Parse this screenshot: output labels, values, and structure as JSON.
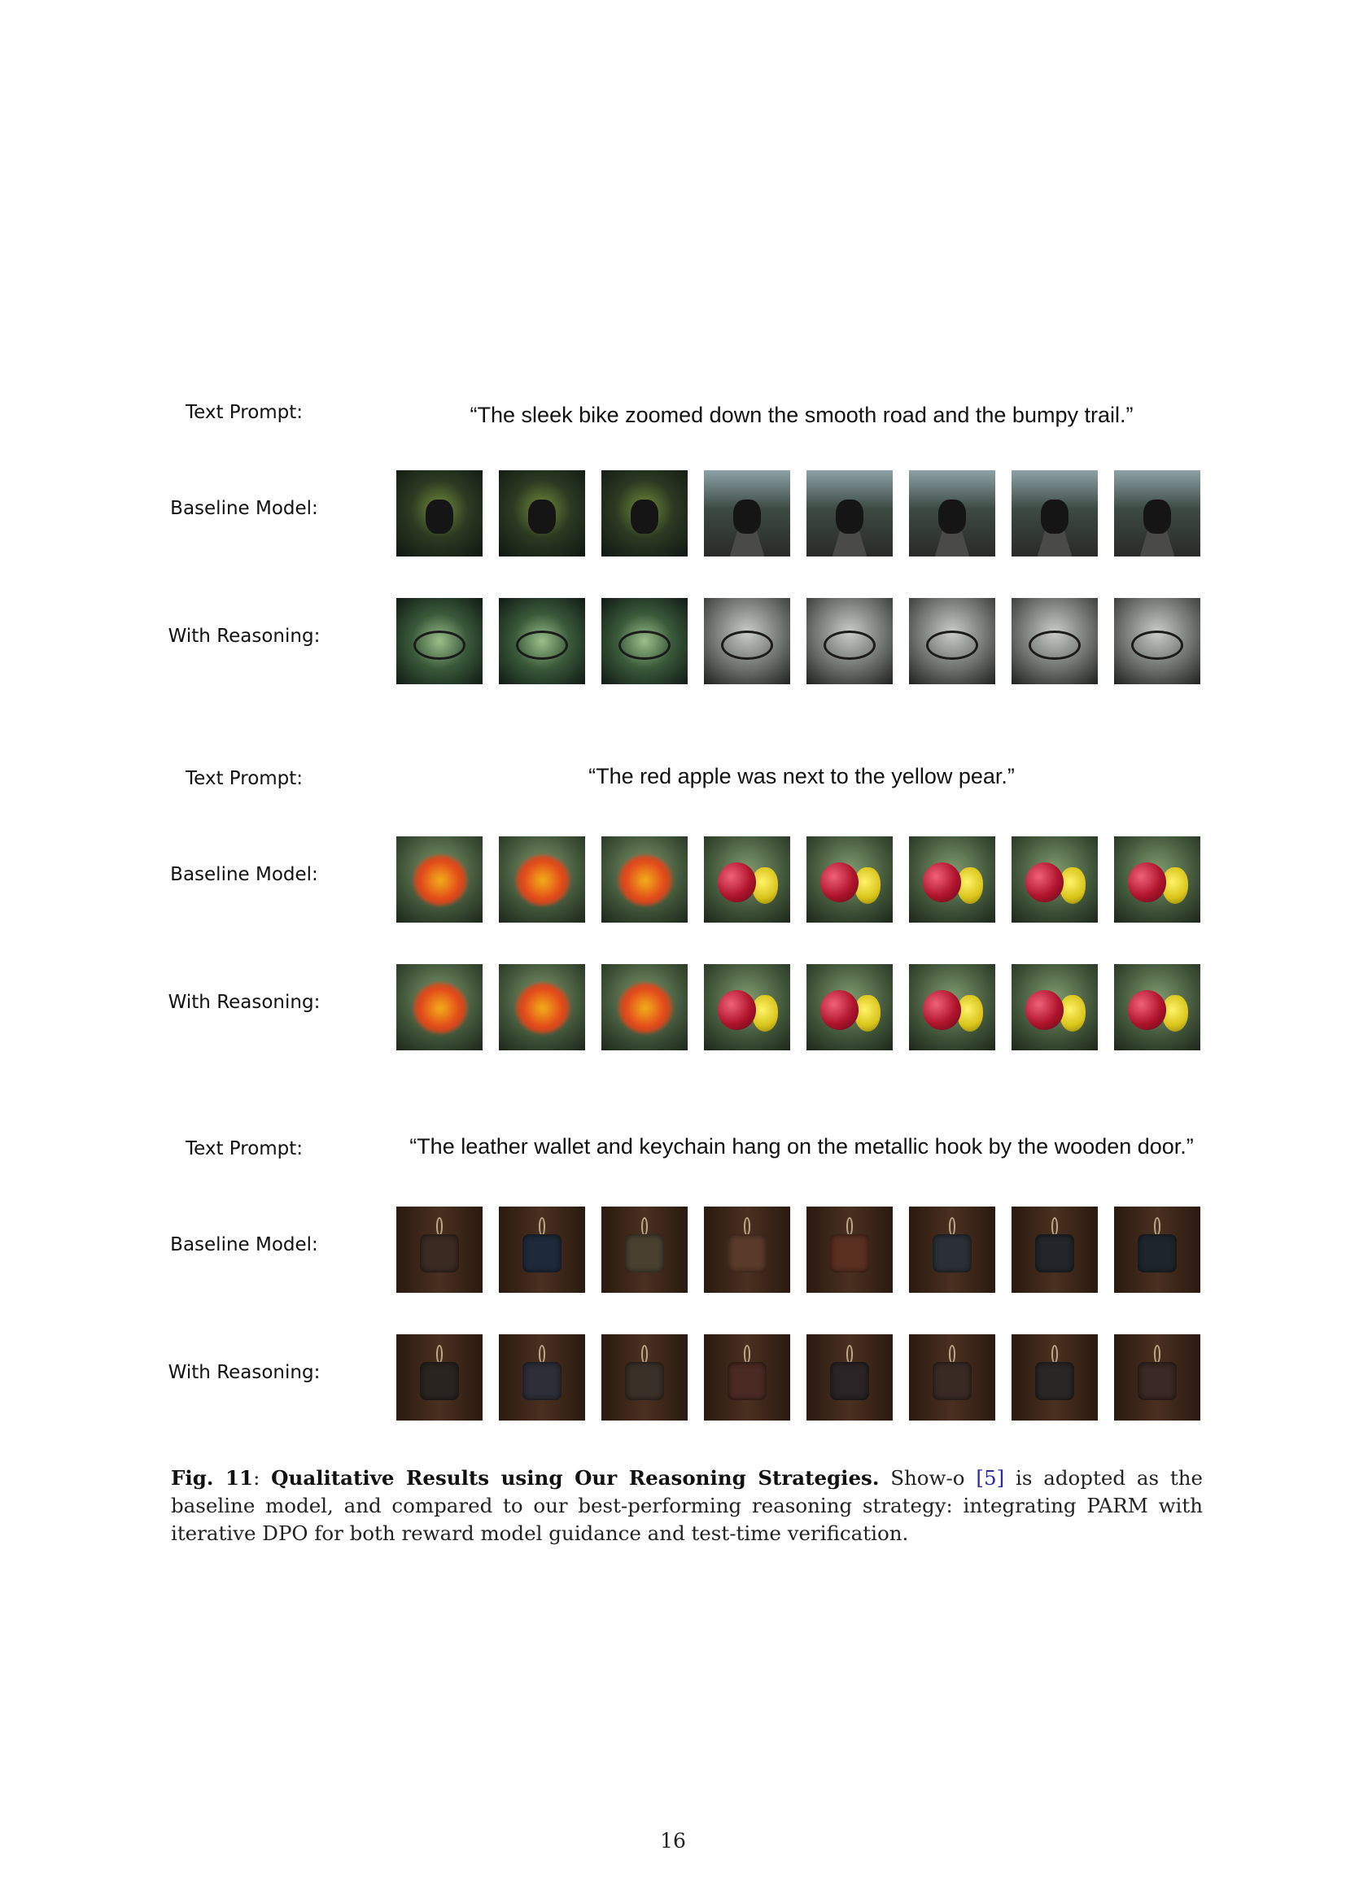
{
  "labels": {
    "prompt": "Text Prompt:",
    "baseline": "Baseline Model:",
    "reasoning": "With Reasoning:"
  },
  "examples": [
    {
      "prompt": "“The sleek bike zoomed down the smooth road and the bumpy trail.”",
      "baseline_images": [
        "bike-baseline-1",
        "bike-baseline-2",
        "bike-baseline-3",
        "bike-baseline-4",
        "bike-baseline-5",
        "bike-baseline-6",
        "bike-baseline-7",
        "bike-baseline-8"
      ],
      "reasoning_images": [
        "bike-reasoning-1",
        "bike-reasoning-2",
        "bike-reasoning-3",
        "bike-reasoning-4",
        "bike-reasoning-5",
        "bike-reasoning-6",
        "bike-reasoning-7",
        "bike-reasoning-8"
      ]
    },
    {
      "prompt": "“The red apple was next to the yellow pear.”",
      "baseline_images": [
        "apple-baseline-1",
        "apple-baseline-2",
        "apple-baseline-3",
        "apple-baseline-4",
        "apple-baseline-5",
        "apple-baseline-6",
        "apple-baseline-7",
        "apple-baseline-8"
      ],
      "reasoning_images": [
        "apple-reasoning-1",
        "apple-reasoning-2",
        "apple-reasoning-3",
        "apple-reasoning-4",
        "apple-reasoning-5",
        "apple-reasoning-6",
        "apple-reasoning-7",
        "apple-reasoning-8"
      ]
    },
    {
      "prompt": "“The leather wallet and keychain hang on the metallic hook by the wooden door.”",
      "baseline_images": [
        "wallet-baseline-1",
        "wallet-baseline-2",
        "wallet-baseline-3",
        "wallet-baseline-4",
        "wallet-baseline-5",
        "wallet-baseline-6",
        "wallet-baseline-7",
        "wallet-baseline-8"
      ],
      "reasoning_images": [
        "wallet-reasoning-1",
        "wallet-reasoning-2",
        "wallet-reasoning-3",
        "wallet-reasoning-4",
        "wallet-reasoning-5",
        "wallet-reasoning-6",
        "wallet-reasoning-7",
        "wallet-reasoning-8"
      ]
    }
  ],
  "caption": {
    "figure_label": "Fig. 11",
    "separator": ": ",
    "title": "Qualitative Results using Our Reasoning Strategies.",
    "text_before_cite": " Show-o ",
    "citation": "[5]",
    "text_after_cite": " is adopted as the baseline model, and compared to our best-performing reasoning strategy: integrating PARM with iterative DPO for both reward model guidance and test-time verification."
  },
  "page_number": "16",
  "colors": {
    "citation": "#2a2aa8",
    "text": "#111111"
  }
}
